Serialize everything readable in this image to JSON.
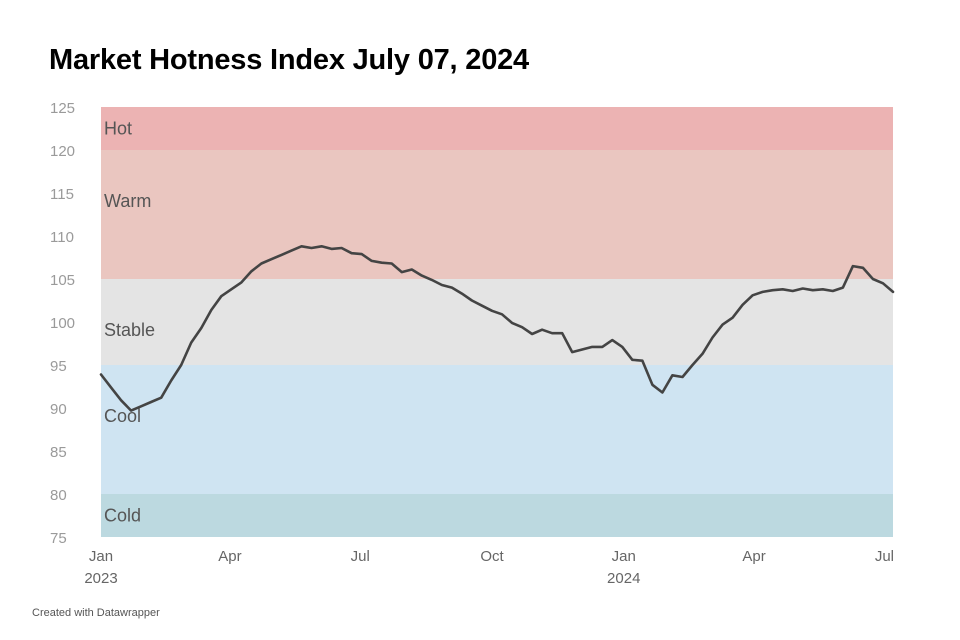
{
  "title": "Market Hotness Index July 07, 2024",
  "footer": "Created with Datawrapper",
  "chart_data": {
    "type": "line",
    "title": "Market Hotness Index July 07, 2024",
    "ylim": [
      75,
      125
    ],
    "yticks": [
      75,
      80,
      85,
      90,
      95,
      100,
      105,
      110,
      115,
      120,
      125
    ],
    "xlim": [
      "2023-01-01",
      "2024-07-07"
    ],
    "xticks": [
      {
        "date": "2023-01-01",
        "label": "Jan",
        "sublabel": "2023"
      },
      {
        "date": "2023-04-01",
        "label": "Apr",
        "sublabel": ""
      },
      {
        "date": "2023-07-01",
        "label": "Jul",
        "sublabel": ""
      },
      {
        "date": "2023-10-01",
        "label": "Oct",
        "sublabel": ""
      },
      {
        "date": "2024-01-01",
        "label": "Jan",
        "sublabel": "2024"
      },
      {
        "date": "2024-04-01",
        "label": "Apr",
        "sublabel": ""
      },
      {
        "date": "2024-07-01",
        "label": "Jul",
        "sublabel": ""
      }
    ],
    "bands": [
      {
        "label": "Hot",
        "from": 120,
        "to": 125,
        "color": "#ecb3b3"
      },
      {
        "label": "Warm",
        "from": 105,
        "to": 120,
        "color": "#eac6c0"
      },
      {
        "label": "Stable",
        "from": 95,
        "to": 105,
        "color": "#e4e4e4"
      },
      {
        "label": "Cool",
        "from": 80,
        "to": 95,
        "color": "#cfe4f2"
      },
      {
        "label": "Cold",
        "from": 75,
        "to": 80,
        "color": "#bcd9e0"
      }
    ],
    "line_color": "#444444",
    "series": [
      {
        "x": [
          "2023-01-01",
          "2023-01-08",
          "2023-01-15",
          "2023-01-22",
          "2023-01-29",
          "2023-02-05",
          "2023-02-12",
          "2023-02-19",
          "2023-02-26",
          "2023-03-05",
          "2023-03-12",
          "2023-03-19",
          "2023-03-26",
          "2023-04-02",
          "2023-04-09",
          "2023-04-16",
          "2023-04-23",
          "2023-04-30",
          "2023-05-07",
          "2023-05-14",
          "2023-05-21",
          "2023-05-28",
          "2023-06-04",
          "2023-06-11",
          "2023-06-18",
          "2023-06-25",
          "2023-07-02",
          "2023-07-09",
          "2023-07-16",
          "2023-07-23",
          "2023-07-30",
          "2023-08-06",
          "2023-08-13",
          "2023-08-20",
          "2023-08-27",
          "2023-09-03",
          "2023-09-10",
          "2023-09-17",
          "2023-09-24",
          "2023-10-01",
          "2023-10-08",
          "2023-10-15",
          "2023-10-22",
          "2023-10-29",
          "2023-11-05",
          "2023-11-12",
          "2023-11-19",
          "2023-11-26",
          "2023-12-03",
          "2023-12-10",
          "2023-12-17",
          "2023-12-24",
          "2023-12-31",
          "2024-01-07",
          "2024-01-14",
          "2024-01-21",
          "2024-01-28",
          "2024-02-04",
          "2024-02-11",
          "2024-02-18",
          "2024-02-25",
          "2024-03-03",
          "2024-03-10",
          "2024-03-17",
          "2024-03-24",
          "2024-03-31",
          "2024-04-07",
          "2024-04-14",
          "2024-04-21",
          "2024-04-28",
          "2024-05-05",
          "2024-05-12",
          "2024-05-19",
          "2024-05-26",
          "2024-06-02",
          "2024-06-09",
          "2024-06-16",
          "2024-06-23",
          "2024-06-30",
          "2024-07-07"
        ],
        "values": [
          93.9,
          92.4,
          90.9,
          89.7,
          90.2,
          90.7,
          91.2,
          93.2,
          95.0,
          97.6,
          99.3,
          101.4,
          103.0,
          103.8,
          104.6,
          105.9,
          106.8,
          107.3,
          107.8,
          108.3,
          108.8,
          108.6,
          108.8,
          108.5,
          108.6,
          108.0,
          107.9,
          107.1,
          106.9,
          106.8,
          105.8,
          106.1,
          105.4,
          104.9,
          104.3,
          104.0,
          103.3,
          102.5,
          101.9,
          101.3,
          100.9,
          99.9,
          99.4,
          98.6,
          99.1,
          98.7,
          98.7,
          96.5,
          96.8,
          97.1,
          97.1,
          97.9,
          97.1,
          95.6,
          95.5,
          92.7,
          91.8,
          93.8,
          93.6,
          95.0,
          96.3,
          98.2,
          99.7,
          100.5,
          102.0,
          103.1,
          103.5,
          103.7,
          103.8,
          103.6,
          103.9,
          103.7,
          103.8,
          103.6,
          104.0,
          106.5,
          106.3,
          105.0,
          104.5,
          103.5
        ]
      }
    ]
  }
}
